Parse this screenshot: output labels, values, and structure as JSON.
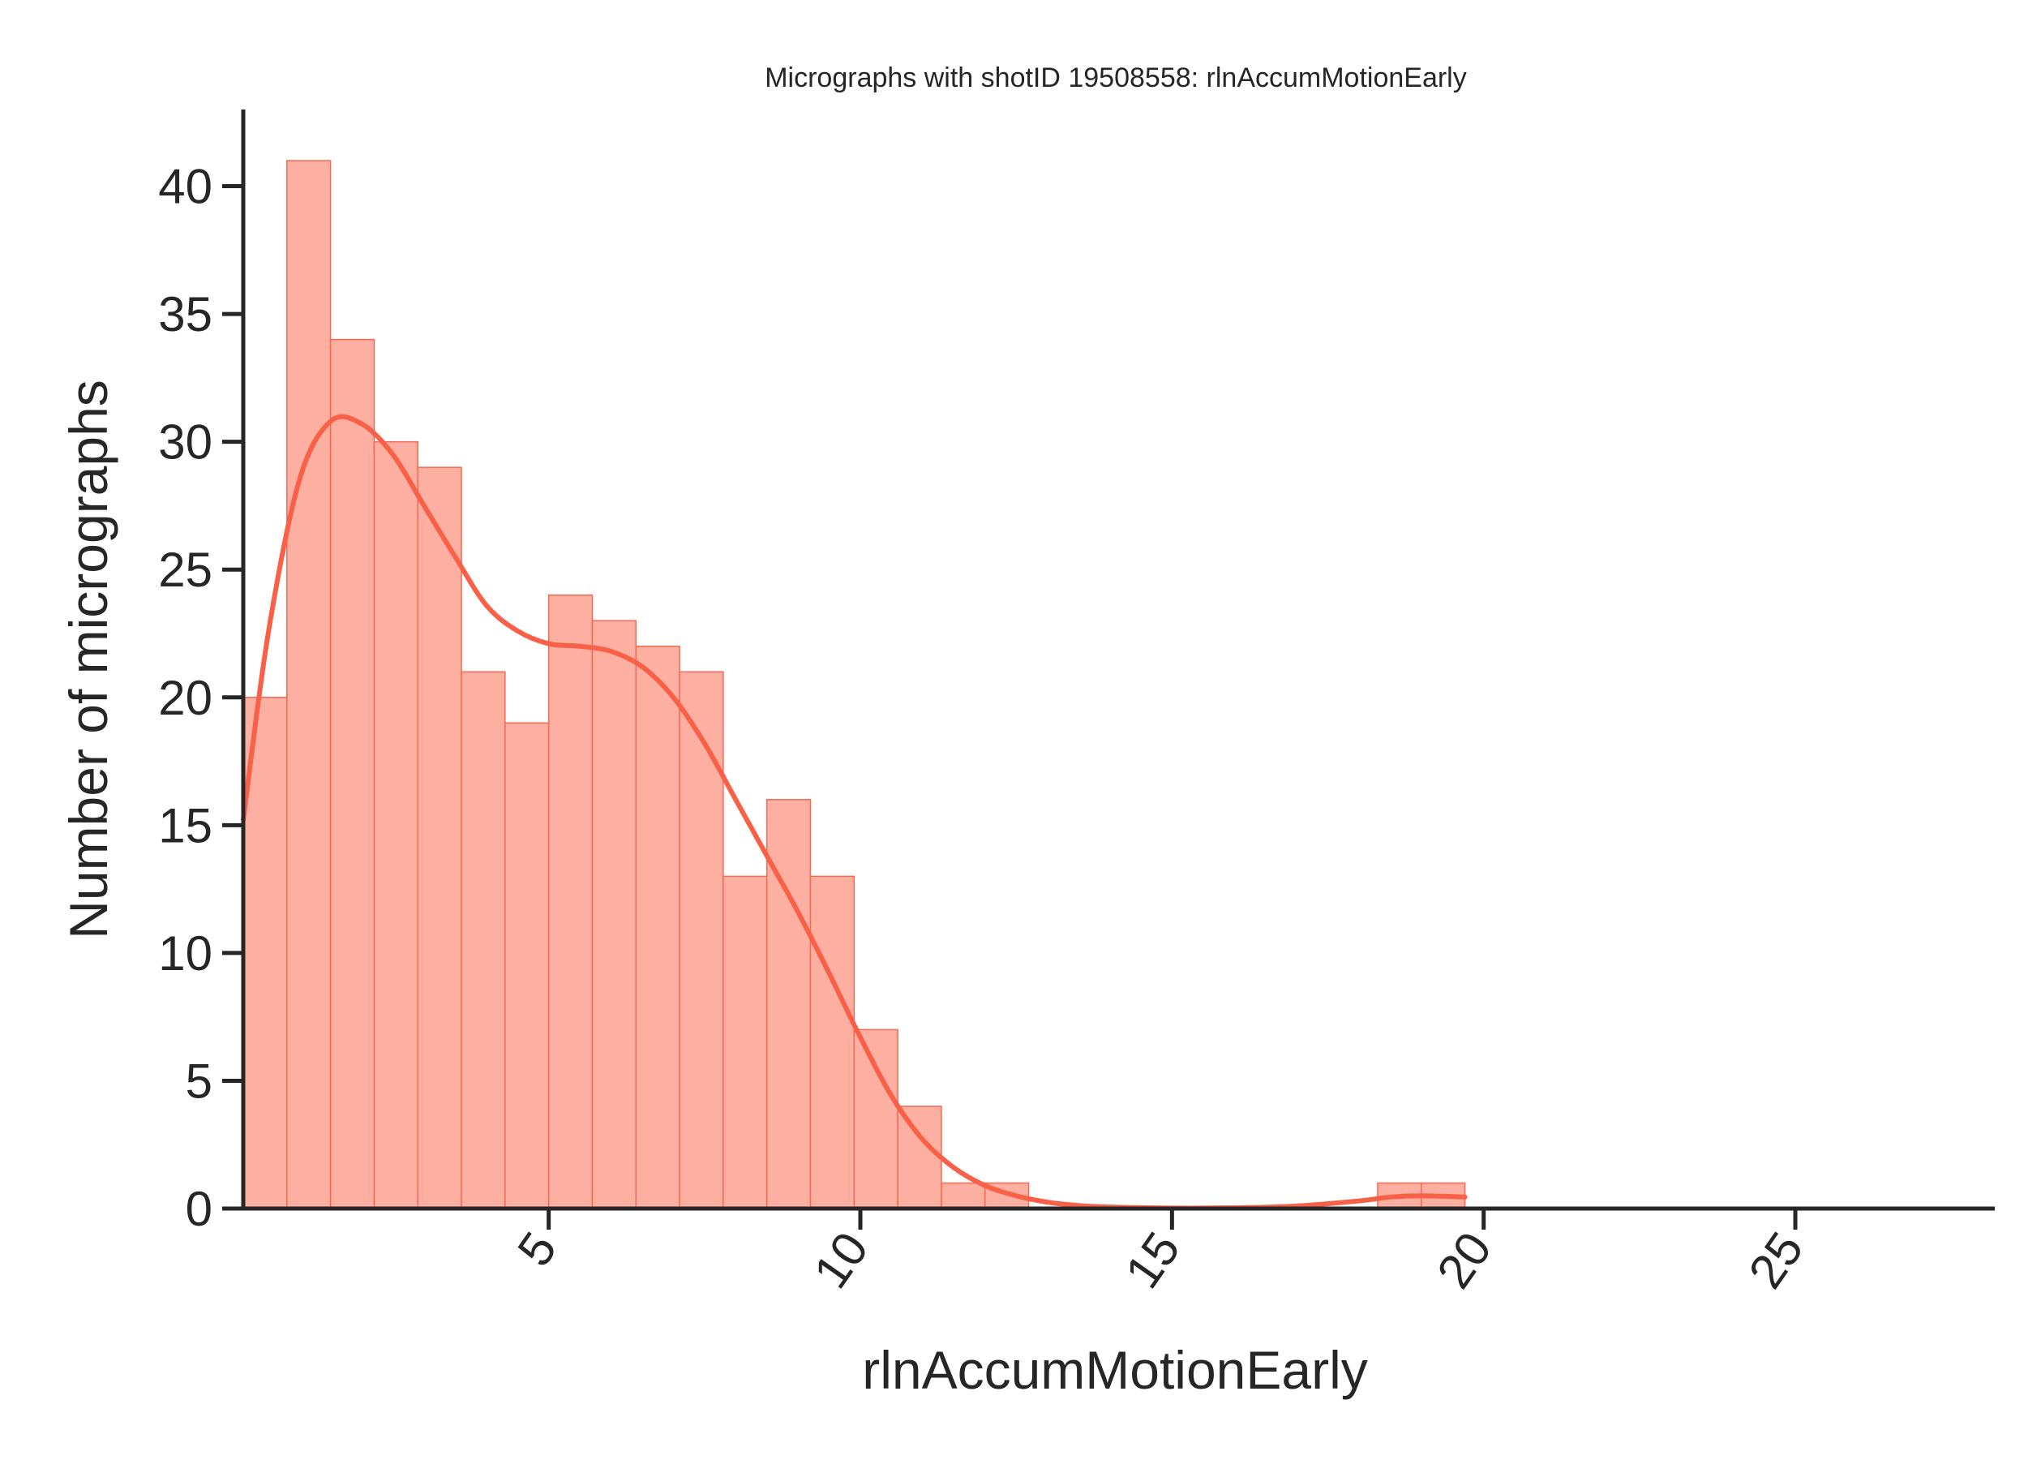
{
  "chart_data": {
    "type": "bar",
    "subtype": "histogram with kde",
    "title": "Micrographs with shotID 19508558: rlnAccumMotionEarly",
    "xlabel": "rlnAccumMotionEarly",
    "ylabel": "Number of micrographs",
    "xlim": [
      0.1,
      28.2
    ],
    "ylim": [
      0,
      43
    ],
    "xticks": [
      5,
      10,
      15,
      20,
      25
    ],
    "yticks": [
      0,
      5,
      10,
      15,
      20,
      25,
      30,
      35,
      40
    ],
    "bins": [
      {
        "x0": 0.1,
        "x1": 0.8,
        "count": 20
      },
      {
        "x0": 0.8,
        "x1": 1.5,
        "count": 41
      },
      {
        "x0": 1.5,
        "x1": 2.2,
        "count": 34
      },
      {
        "x0": 2.2,
        "x1": 2.9,
        "count": 30
      },
      {
        "x0": 2.9,
        "x1": 3.6,
        "count": 29
      },
      {
        "x0": 3.6,
        "x1": 4.3,
        "count": 21
      },
      {
        "x0": 4.3,
        "x1": 5.0,
        "count": 19
      },
      {
        "x0": 5.0,
        "x1": 5.7,
        "count": 24
      },
      {
        "x0": 5.7,
        "x1": 6.4,
        "count": 23
      },
      {
        "x0": 6.4,
        "x1": 7.1,
        "count": 22
      },
      {
        "x0": 7.1,
        "x1": 7.8,
        "count": 21
      },
      {
        "x0": 7.8,
        "x1": 8.5,
        "count": 13
      },
      {
        "x0": 8.5,
        "x1": 9.2,
        "count": 16
      },
      {
        "x0": 9.2,
        "x1": 9.9,
        "count": 13
      },
      {
        "x0": 9.9,
        "x1": 10.6,
        "count": 7
      },
      {
        "x0": 10.6,
        "x1": 11.3,
        "count": 4
      },
      {
        "x0": 11.3,
        "x1": 12.0,
        "count": 1
      },
      {
        "x0": 12.0,
        "x1": 12.7,
        "count": 1
      },
      {
        "x0": 18.3,
        "x1": 19.0,
        "count": 1
      },
      {
        "x0": 19.0,
        "x1": 19.7,
        "count": 1
      }
    ],
    "kde": {
      "x": [
        0.1,
        0.5,
        1.0,
        1.5,
        2.0,
        2.5,
        3.0,
        3.5,
        4.0,
        4.5,
        5.0,
        5.5,
        6.0,
        6.5,
        7.0,
        7.5,
        8.0,
        8.5,
        9.0,
        9.5,
        10.0,
        10.5,
        11.0,
        11.5,
        12.0,
        12.5,
        13.0,
        13.5,
        14.0,
        15.0,
        16.0,
        17.0,
        18.0,
        18.5,
        19.0,
        19.7
      ],
      "y": [
        15.2,
        22.5,
        28.5,
        30.8,
        30.7,
        29.5,
        27.5,
        25.5,
        23.6,
        22.6,
        22.1,
        22.0,
        21.8,
        21.2,
        20.0,
        18.2,
        16.0,
        13.8,
        11.6,
        9.2,
        6.7,
        4.4,
        2.7,
        1.6,
        0.9,
        0.5,
        0.25,
        0.12,
        0.06,
        0.02,
        0.03,
        0.1,
        0.3,
        0.45,
        0.5,
        0.45
      ]
    },
    "colors": {
      "bar_fill": "#fdafa2",
      "bar_edge": "#f46a52",
      "kde_line": "#f96048",
      "axis": "#262626"
    },
    "grid": false,
    "legend": "none"
  }
}
